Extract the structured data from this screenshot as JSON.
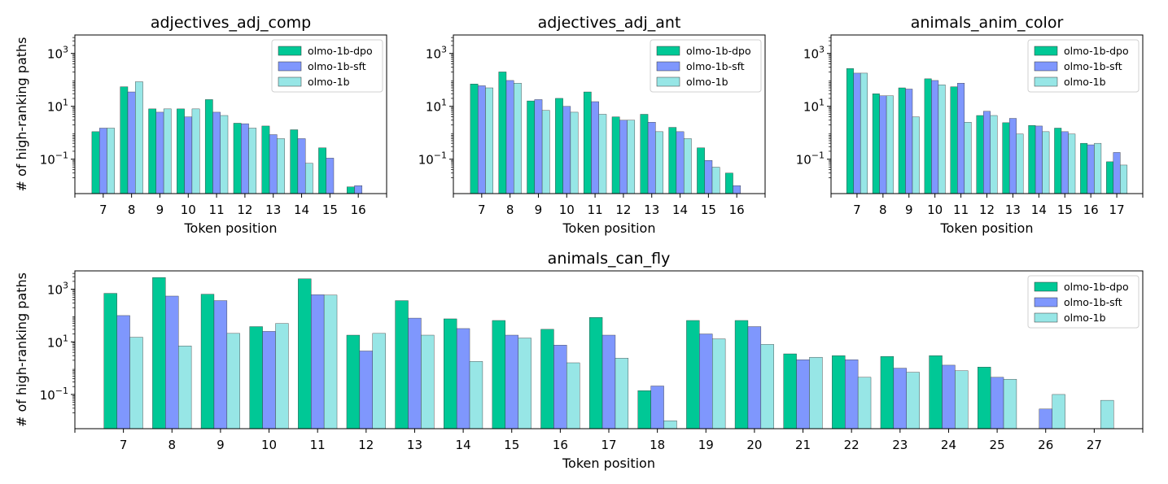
{
  "colors": {
    "olmo-1b-dpo": "#00c896",
    "olmo-1b-sft": "#7f97fd",
    "olmo-1b": "#97e6e6",
    "edge": "#333333",
    "highlight_tick": "#0000ff"
  },
  "chart_data": [
    {
      "type": "bar",
      "title": "adjectives_adj_comp",
      "xlabel": "Token position",
      "ylabel": "# of high-ranking paths",
      "yscale": "log",
      "ylim": [
        0.005,
        5000
      ],
      "yticks": [
        {
          "value": 0.1,
          "base": "10",
          "exp": "−1"
        },
        {
          "value": 10,
          "base": "10",
          "exp": "1"
        },
        {
          "value": 1000,
          "base": "10",
          "exp": "3"
        }
      ],
      "highlight": "8",
      "legend": "top-right",
      "categories": [
        "7",
        "8",
        "9",
        "10",
        "11",
        "12",
        "13",
        "14",
        "15",
        "16"
      ],
      "series": [
        {
          "name": "olmo-1b-dpo",
          "values": [
            1.1,
            55,
            8,
            8,
            18,
            2.3,
            1.8,
            1.3,
            0.27,
            0.009
          ]
        },
        {
          "name": "olmo-1b-sft",
          "values": [
            1.5,
            35,
            6,
            4,
            6,
            2.2,
            0.85,
            0.6,
            0.11,
            0.01
          ]
        },
        {
          "name": "olmo-1b",
          "values": [
            1.5,
            85,
            8,
            8,
            4.5,
            1.5,
            0.6,
            0.07,
            null,
            null
          ]
        }
      ]
    },
    {
      "type": "bar",
      "title": "adjectives_adj_ant",
      "xlabel": "Token position",
      "ylabel": "",
      "yscale": "log",
      "ylim": [
        0.005,
        5000
      ],
      "yticks": [
        {
          "value": 0.1,
          "base": "10",
          "exp": "−1"
        },
        {
          "value": 10,
          "base": "10",
          "exp": "1"
        },
        {
          "value": 1000,
          "base": "10",
          "exp": "3"
        }
      ],
      "highlight": "8",
      "legend": "top-right",
      "categories": [
        "7",
        "8",
        "9",
        "10",
        "11",
        "12",
        "13",
        "14",
        "15",
        "16"
      ],
      "series": [
        {
          "name": "olmo-1b-dpo",
          "values": [
            70,
            200,
            16,
            20,
            35,
            4,
            5,
            1.6,
            0.27,
            0.03
          ]
        },
        {
          "name": "olmo-1b-sft",
          "values": [
            60,
            95,
            18,
            10,
            15,
            3,
            2.5,
            1.1,
            0.09,
            0.01
          ]
        },
        {
          "name": "olmo-1b",
          "values": [
            50,
            75,
            7,
            6,
            5,
            3,
            1.1,
            0.6,
            0.05,
            null
          ]
        }
      ]
    },
    {
      "type": "bar",
      "title": "animals_anim_color",
      "xlabel": "Token position",
      "ylabel": "",
      "yscale": "log",
      "ylim": [
        0.005,
        5000
      ],
      "yticks": [
        {
          "value": 0.1,
          "base": "10",
          "exp": "−1"
        },
        {
          "value": 10,
          "base": "10",
          "exp": "1"
        },
        {
          "value": 1000,
          "base": "10",
          "exp": "3"
        }
      ],
      "highlight": "10",
      "legend": "top-right",
      "categories": [
        "7",
        "8",
        "9",
        "10",
        "11",
        "12",
        "13",
        "14",
        "15",
        "16",
        "17"
      ],
      "series": [
        {
          "name": "olmo-1b-dpo",
          "values": [
            270,
            30,
            50,
            110,
            55,
            4.5,
            2.4,
            1.9,
            1.5,
            0.4,
            0.08
          ]
        },
        {
          "name": "olmo-1b-sft",
          "values": [
            180,
            25,
            45,
            95,
            75,
            6.5,
            3.5,
            1.8,
            1.1,
            0.35,
            0.18
          ]
        },
        {
          "name": "olmo-1b",
          "values": [
            180,
            25,
            4,
            65,
            2.5,
            4.5,
            0.9,
            1.1,
            0.9,
            0.4,
            0.06
          ]
        }
      ]
    },
    {
      "type": "bar",
      "title": "animals_can_fly",
      "xlabel": "Token position",
      "ylabel": "# of high-ranking paths",
      "yscale": "log",
      "ylim": [
        0.005,
        5000
      ],
      "yticks": [
        {
          "value": 0.1,
          "base": "10",
          "exp": "−1"
        },
        {
          "value": 10,
          "base": "10",
          "exp": "1"
        },
        {
          "value": 1000,
          "base": "10",
          "exp": "3"
        }
      ],
      "highlight": "19",
      "legend": "top-right",
      "categories": [
        "7",
        "8",
        "9",
        "10",
        "11",
        "12",
        "13",
        "14",
        "15",
        "16",
        "17",
        "18",
        "19",
        "20",
        "21",
        "22",
        "23",
        "24",
        "25",
        "26",
        "27"
      ],
      "series": [
        {
          "name": "olmo-1b-dpo",
          "values": [
            700,
            2800,
            650,
            38,
            2500,
            18,
            370,
            75,
            65,
            30,
            85,
            0.14,
            65,
            65,
            3.5,
            3,
            2.8,
            3,
            1.1,
            null,
            null
          ]
        },
        {
          "name": "olmo-1b-sft",
          "values": [
            100,
            550,
            370,
            25,
            620,
            4.5,
            80,
            32,
            18,
            7.5,
            18,
            0.21,
            20,
            38,
            2.1,
            2.1,
            1,
            1.3,
            0.45,
            0.028,
            null
          ]
        },
        {
          "name": "olmo-1b",
          "values": [
            15,
            7,
            21,
            50,
            600,
            21,
            18,
            1.8,
            14,
            1.6,
            2.4,
            0.01,
            13,
            8,
            2.6,
            0.45,
            0.7,
            0.8,
            0.38,
            0.1,
            0.06
          ]
        }
      ]
    }
  ]
}
